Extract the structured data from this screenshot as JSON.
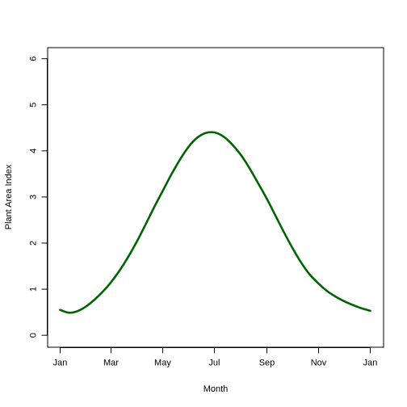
{
  "chart_data": {
    "type": "line",
    "title": "",
    "xlabel": "Month",
    "ylabel": "Plant Area Index",
    "xlim": [
      "2000-01-01",
      "2001-01-01"
    ],
    "ylim": [
      0,
      6
    ],
    "x_ticks": [
      {
        "label": "Jan",
        "date": "2000-01-01"
      },
      {
        "label": "Mar",
        "date": "2000-03-01"
      },
      {
        "label": "May",
        "date": "2000-05-01"
      },
      {
        "label": "Jul",
        "date": "2000-07-01"
      },
      {
        "label": "Sep",
        "date": "2000-09-01"
      },
      {
        "label": "Nov",
        "date": "2000-11-01"
      },
      {
        "label": "Jan",
        "date": "2001-01-01"
      }
    ],
    "y_ticks": [
      0,
      1,
      2,
      3,
      4,
      5,
      6
    ],
    "grid": false,
    "legend": "none",
    "series": [
      {
        "color": "#006400",
        "x": [
          "2000-01-01",
          "2000-01-11",
          "2000-01-21",
          "2000-02-01",
          "2000-02-11",
          "2000-02-21",
          "2000-03-01",
          "2000-03-11",
          "2000-03-21",
          "2000-04-01",
          "2000-04-11",
          "2000-04-21",
          "2000-05-01",
          "2000-05-11",
          "2000-05-21",
          "2000-06-01",
          "2000-06-11",
          "2000-06-21",
          "2000-07-01",
          "2000-07-11",
          "2000-07-21",
          "2000-08-01",
          "2000-08-11",
          "2000-08-21",
          "2000-09-01",
          "2000-09-11",
          "2000-09-21",
          "2000-10-01",
          "2000-10-11",
          "2000-10-21",
          "2000-11-01",
          "2000-11-11",
          "2000-11-21",
          "2000-12-01",
          "2000-12-11",
          "2000-12-21",
          "2001-01-01"
        ],
        "y": [
          0.55,
          0.49,
          0.52,
          0.63,
          0.78,
          0.96,
          1.15,
          1.4,
          1.69,
          2.05,
          2.41,
          2.78,
          3.13,
          3.48,
          3.8,
          4.1,
          4.29,
          4.39,
          4.4,
          4.32,
          4.16,
          3.92,
          3.64,
          3.32,
          2.96,
          2.6,
          2.24,
          1.9,
          1.59,
          1.33,
          1.12,
          0.96,
          0.84,
          0.74,
          0.66,
          0.59,
          0.53
        ]
      }
    ]
  }
}
